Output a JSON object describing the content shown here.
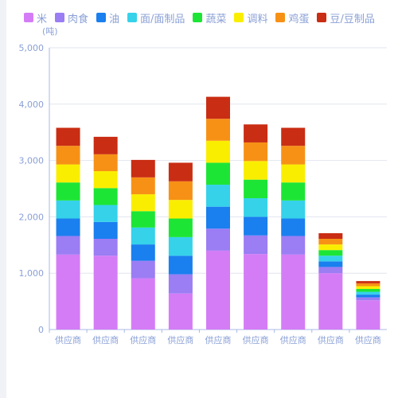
{
  "unit": "(吨)",
  "legend": [
    {
      "label": "米",
      "color": "#d47cf6"
    },
    {
      "label": "肉食",
      "color": "#9b7df4"
    },
    {
      "label": "油",
      "color": "#1a7fef"
    },
    {
      "label": "面/面制品",
      "color": "#35d2ea"
    },
    {
      "label": "蔬菜",
      "color": "#1de536"
    },
    {
      "label": "调料",
      "color": "#faee00"
    },
    {
      "label": "鸡蛋",
      "color": "#f79116"
    },
    {
      "label": "豆/豆制品",
      "color": "#c92d13"
    }
  ],
  "chart_data": {
    "type": "bar",
    "stacked": true,
    "categories": [
      "供应商",
      "供应商",
      "供应商",
      "供应商",
      "供应商",
      "供应商",
      "供应商",
      "供应商",
      "供应商"
    ],
    "ylim": [
      0,
      5000
    ],
    "yticks": [
      0,
      1000,
      2000,
      3000,
      4000,
      5000
    ],
    "ytick_labels": [
      "0",
      "1,000",
      "2,000",
      "3,000",
      "4,000",
      "5,000"
    ],
    "grid": true,
    "legend_position": "top",
    "series": [
      {
        "name": "米",
        "color": "#d47cf6",
        "values": [
          1330,
          1310,
          910,
          640,
          1400,
          1340,
          1330,
          1000,
          520
        ]
      },
      {
        "name": "肉食",
        "color": "#9b7df4",
        "values": [
          330,
          300,
          310,
          340,
          390,
          330,
          330,
          110,
          50
        ]
      },
      {
        "name": "油",
        "color": "#1a7fef",
        "values": [
          310,
          300,
          290,
          330,
          390,
          330,
          310,
          100,
          50
        ]
      },
      {
        "name": "面/面制品",
        "color": "#35d2ea",
        "values": [
          320,
          300,
          300,
          330,
          390,
          330,
          320,
          100,
          50
        ]
      },
      {
        "name": "蔬菜",
        "color": "#1de536",
        "values": [
          320,
          300,
          290,
          330,
          390,
          330,
          320,
          100,
          50
        ]
      },
      {
        "name": "调料",
        "color": "#faee00",
        "values": [
          320,
          300,
          300,
          330,
          390,
          330,
          320,
          100,
          50
        ]
      },
      {
        "name": "鸡蛋",
        "color": "#f79116",
        "values": [
          330,
          300,
          300,
          330,
          390,
          330,
          330,
          100,
          50
        ]
      },
      {
        "name": "豆/豆制品",
        "color": "#c92d13",
        "values": [
          320,
          310,
          310,
          330,
          390,
          320,
          320,
          100,
          40
        ]
      }
    ]
  }
}
